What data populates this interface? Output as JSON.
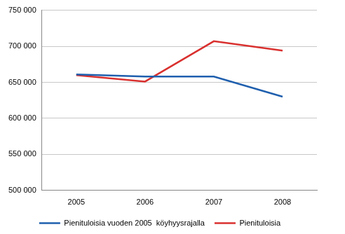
{
  "chart_data": {
    "type": "line",
    "categories": [
      "2005",
      "2006",
      "2007",
      "2008"
    ],
    "series": [
      {
        "name": "Pienituloisia vuoden 2005  köyhyysrajalla",
        "color": "#1f5fae",
        "values": [
          661000,
          658000,
          658000,
          630000
        ]
      },
      {
        "name": "Pienituloisia",
        "color": "#d9312f",
        "values": [
          660000,
          651000,
          707000,
          694000
        ]
      }
    ],
    "ylim": [
      500000,
      750000
    ],
    "yticks": [
      {
        "value": 500000,
        "label": "500 000"
      },
      {
        "value": 550000,
        "label": "550 000"
      },
      {
        "value": 600000,
        "label": "600 000"
      },
      {
        "value": 650000,
        "label": "650 000"
      },
      {
        "value": 700000,
        "label": "700 000"
      },
      {
        "value": 750000,
        "label": "750 000"
      }
    ],
    "grid": true,
    "legend": "bottom"
  }
}
